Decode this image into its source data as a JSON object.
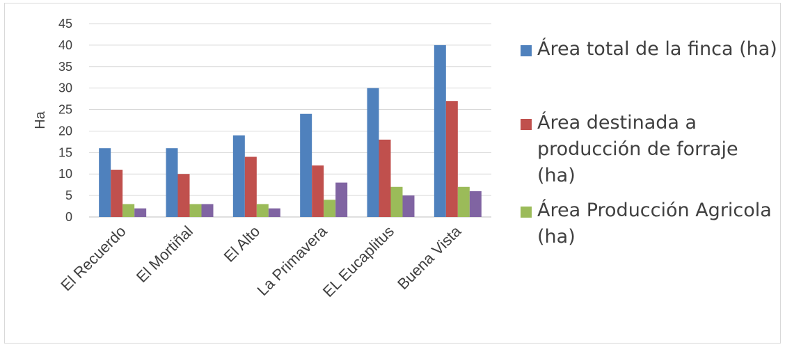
{
  "chart_data": {
    "type": "bar",
    "title": "",
    "xlabel": "",
    "ylabel": "Ha",
    "ylim": [
      0,
      45
    ],
    "yticks": [
      0,
      5,
      10,
      15,
      20,
      25,
      30,
      35,
      40,
      45
    ],
    "grid": true,
    "legend_position": "right",
    "categories": [
      "El Recuerdo",
      "El Mortiñal",
      "El Alto",
      "La Primavera",
      "EL Eucaplitus",
      "Buena Vista"
    ],
    "series": [
      {
        "name": "Área total de la finca (ha)",
        "color": "#4f81bd",
        "values": [
          16,
          16,
          19,
          24,
          30,
          40
        ]
      },
      {
        "name": "Área destinada a producción de forraje (ha)",
        "color": "#c0504d",
        "values": [
          11,
          10,
          14,
          12,
          18,
          27
        ]
      },
      {
        "name": "Área Producción  Agricola (ha)",
        "color": "#9bbb59",
        "values": [
          3,
          3,
          3,
          4,
          7,
          7
        ]
      },
      {
        "name": "",
        "color": "#8064a2",
        "values": [
          2,
          3,
          2,
          8,
          5,
          6
        ]
      }
    ]
  }
}
